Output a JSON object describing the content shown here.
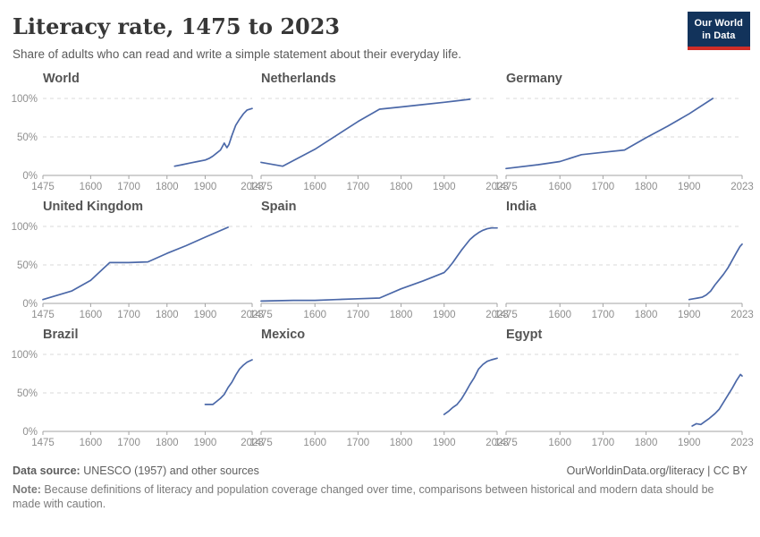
{
  "header": {
    "title": "Literacy rate, 1475 to 2023",
    "subtitle": "Share of adults who can read and write a simple statement about their everyday life.",
    "logo": {
      "line1": "Our World",
      "line2": "in Data",
      "bg_color": "#12335b",
      "accent_color": "#cf2d27"
    }
  },
  "chart_data": {
    "type": "line",
    "title": "Literacy rate, 1475 to 2023",
    "xlabel": "",
    "ylabel": "",
    "x_range": [
      1475,
      2023
    ],
    "y_range": [
      0,
      100
    ],
    "x_ticks": [
      1475,
      1600,
      1700,
      1800,
      1900,
      2023
    ],
    "y_ticks": [
      0,
      50,
      100
    ],
    "y_tick_suffix": "%",
    "grid": "horizontal dashed at 50% and 100%",
    "legend": "none (one facet per entity)",
    "line_color": "#4b68a8",
    "facets": [
      {
        "title": "World",
        "points": [
          [
            1820,
            12
          ],
          [
            1840,
            14
          ],
          [
            1860,
            16
          ],
          [
            1880,
            18
          ],
          [
            1900,
            20
          ],
          [
            1910,
            22
          ],
          [
            1920,
            25
          ],
          [
            1930,
            29
          ],
          [
            1940,
            33
          ],
          [
            1950,
            42
          ],
          [
            1957,
            36
          ],
          [
            1962,
            40
          ],
          [
            1970,
            52
          ],
          [
            1980,
            65
          ],
          [
            1990,
            73
          ],
          [
            2000,
            80
          ],
          [
            2010,
            85
          ],
          [
            2023,
            87
          ]
        ]
      },
      {
        "title": "Netherlands",
        "points": [
          [
            1475,
            17
          ],
          [
            1525,
            12
          ],
          [
            1600,
            34
          ],
          [
            1650,
            52
          ],
          [
            1700,
            70
          ],
          [
            1750,
            86
          ],
          [
            1800,
            89
          ],
          [
            1850,
            92
          ],
          [
            1900,
            95
          ],
          [
            1960,
            99
          ]
        ]
      },
      {
        "title": "Germany",
        "points": [
          [
            1475,
            9
          ],
          [
            1550,
            14
          ],
          [
            1600,
            18
          ],
          [
            1650,
            27
          ],
          [
            1700,
            30
          ],
          [
            1750,
            33
          ],
          [
            1800,
            49
          ],
          [
            1850,
            64
          ],
          [
            1900,
            80
          ],
          [
            1955,
            100
          ]
        ]
      },
      {
        "title": "United Kingdom",
        "points": [
          [
            1475,
            5
          ],
          [
            1550,
            16
          ],
          [
            1600,
            30
          ],
          [
            1650,
            53
          ],
          [
            1700,
            53
          ],
          [
            1750,
            54
          ],
          [
            1800,
            65
          ],
          [
            1850,
            75
          ],
          [
            1900,
            86
          ],
          [
            1960,
            99
          ]
        ]
      },
      {
        "title": "Spain",
        "points": [
          [
            1475,
            3
          ],
          [
            1550,
            4
          ],
          [
            1600,
            4
          ],
          [
            1650,
            5
          ],
          [
            1700,
            6
          ],
          [
            1750,
            7
          ],
          [
            1800,
            19
          ],
          [
            1850,
            29
          ],
          [
            1900,
            40
          ],
          [
            1910,
            46
          ],
          [
            1920,
            53
          ],
          [
            1930,
            61
          ],
          [
            1940,
            69
          ],
          [
            1950,
            76
          ],
          [
            1960,
            83
          ],
          [
            1970,
            88
          ],
          [
            1980,
            92
          ],
          [
            1990,
            95
          ],
          [
            2000,
            97
          ],
          [
            2010,
            98
          ],
          [
            2023,
            98
          ]
        ]
      },
      {
        "title": "India",
        "points": [
          [
            1900,
            5
          ],
          [
            1910,
            6
          ],
          [
            1920,
            7
          ],
          [
            1930,
            8
          ],
          [
            1940,
            11
          ],
          [
            1950,
            16
          ],
          [
            1960,
            24
          ],
          [
            1970,
            31
          ],
          [
            1980,
            38
          ],
          [
            1990,
            46
          ],
          [
            2000,
            56
          ],
          [
            2010,
            66
          ],
          [
            2018,
            74
          ],
          [
            2023,
            77
          ]
        ]
      },
      {
        "title": "Brazil",
        "points": [
          [
            1900,
            35
          ],
          [
            1910,
            35
          ],
          [
            1920,
            35
          ],
          [
            1930,
            39
          ],
          [
            1940,
            43
          ],
          [
            1950,
            48
          ],
          [
            1960,
            57
          ],
          [
            1970,
            64
          ],
          [
            1980,
            73
          ],
          [
            1990,
            81
          ],
          [
            2000,
            86
          ],
          [
            2010,
            90
          ],
          [
            2023,
            93
          ]
        ]
      },
      {
        "title": "Mexico",
        "points": [
          [
            1900,
            22
          ],
          [
            1910,
            26
          ],
          [
            1920,
            31
          ],
          [
            1930,
            35
          ],
          [
            1940,
            42
          ],
          [
            1950,
            51
          ],
          [
            1960,
            61
          ],
          [
            1970,
            70
          ],
          [
            1980,
            81
          ],
          [
            1990,
            87
          ],
          [
            2000,
            91
          ],
          [
            2010,
            93
          ],
          [
            2023,
            95
          ]
        ]
      },
      {
        "title": "Egypt",
        "points": [
          [
            1907,
            7
          ],
          [
            1917,
            10
          ],
          [
            1927,
            9
          ],
          [
            1937,
            13
          ],
          [
            1947,
            17
          ],
          [
            1960,
            23
          ],
          [
            1970,
            29
          ],
          [
            1980,
            38
          ],
          [
            1990,
            47
          ],
          [
            2000,
            56
          ],
          [
            2010,
            66
          ],
          [
            2019,
            74
          ],
          [
            2023,
            72
          ]
        ]
      }
    ]
  },
  "footer": {
    "source_label": "Data source:",
    "source_text": " UNESCO (1957) and other sources",
    "link_text": "OurWorldinData.org/literacy | CC BY",
    "note_label": "Note:",
    "note_text": " Because definitions of literacy and population coverage changed over time, comparisons between historical and modern data should be made with caution."
  }
}
